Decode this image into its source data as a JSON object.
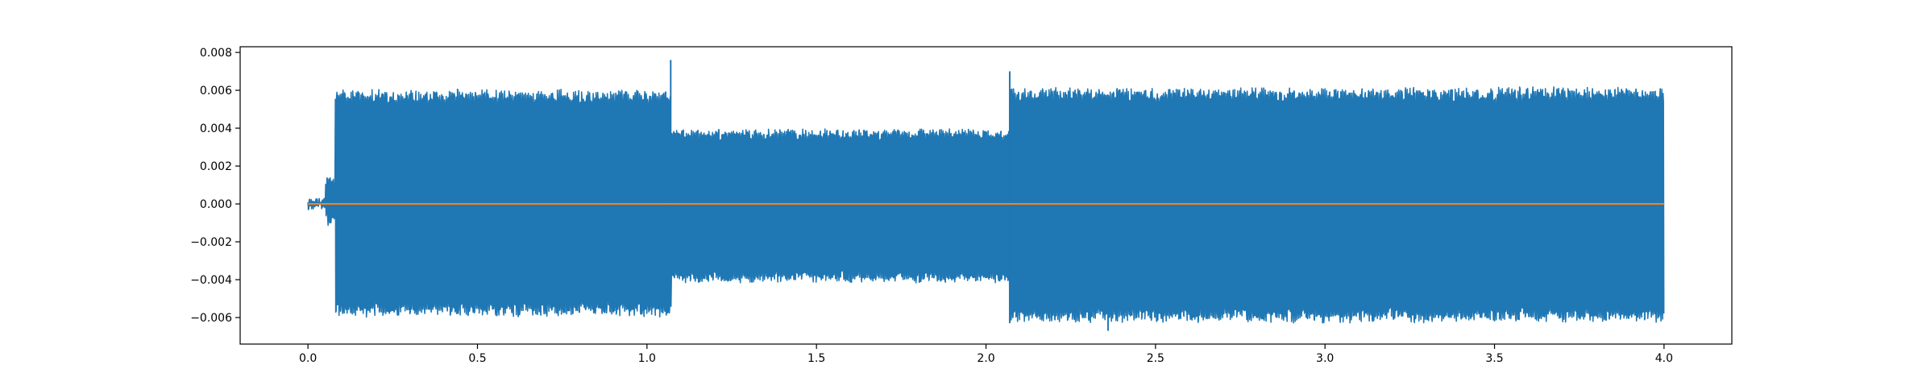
{
  "chart_data": {
    "type": "line",
    "title": "",
    "xlabel": "",
    "ylabel": "",
    "xlim": [
      -0.2,
      4.2
    ],
    "ylim": [
      -0.0074,
      0.0083
    ],
    "grid": false,
    "legend": "none",
    "x_ticks": [
      0.0,
      0.5,
      1.0,
      1.5,
      2.0,
      2.5,
      3.0,
      3.5,
      4.0
    ],
    "x_tick_labels": [
      "0.0",
      "0.5",
      "1.0",
      "1.5",
      "2.0",
      "2.5",
      "3.0",
      "3.5",
      "4.0"
    ],
    "y_ticks": [
      -0.006,
      -0.004,
      -0.002,
      0.0,
      0.002,
      0.004,
      0.006,
      0.008
    ],
    "y_tick_labels": [
      "−0.006",
      "−0.004",
      "−0.002",
      "0.000",
      "0.002",
      "0.004",
      "0.006",
      "0.008"
    ],
    "series": [
      {
        "color": "#1f77b4",
        "style": "dense-oscillation",
        "description_points": {
          "x_start": 0.0,
          "x_end": 4.0,
          "segments": [
            {
              "x_from": 0.0,
              "x_to": 0.05,
              "upper": 0.0,
              "lower": 0.0
            },
            {
              "x_from": 0.05,
              "x_to": 0.08,
              "upper": 0.0013,
              "lower": -0.0009
            },
            {
              "x_from": 0.08,
              "x_to": 1.07,
              "upper": 0.0058,
              "lower": -0.0057
            },
            {
              "x_from": 1.07,
              "x_to": 2.07,
              "upper": 0.0037,
              "lower": -0.0039
            },
            {
              "x_from": 2.07,
              "x_to": 4.0,
              "upper": 0.0059,
              "lower": -0.006
            }
          ],
          "peaks": [
            {
              "x": 1.07,
              "y": 0.0076
            },
            {
              "x": 2.07,
              "y": 0.007
            },
            {
              "x": 2.07,
              "y": -0.0063
            },
            {
              "x": 2.36,
              "y": -0.0067
            }
          ]
        }
      },
      {
        "color": "#ff7f0e",
        "style": "flat",
        "x": [
          0.0,
          4.0
        ],
        "y": [
          0.0,
          0.0
        ]
      }
    ]
  }
}
